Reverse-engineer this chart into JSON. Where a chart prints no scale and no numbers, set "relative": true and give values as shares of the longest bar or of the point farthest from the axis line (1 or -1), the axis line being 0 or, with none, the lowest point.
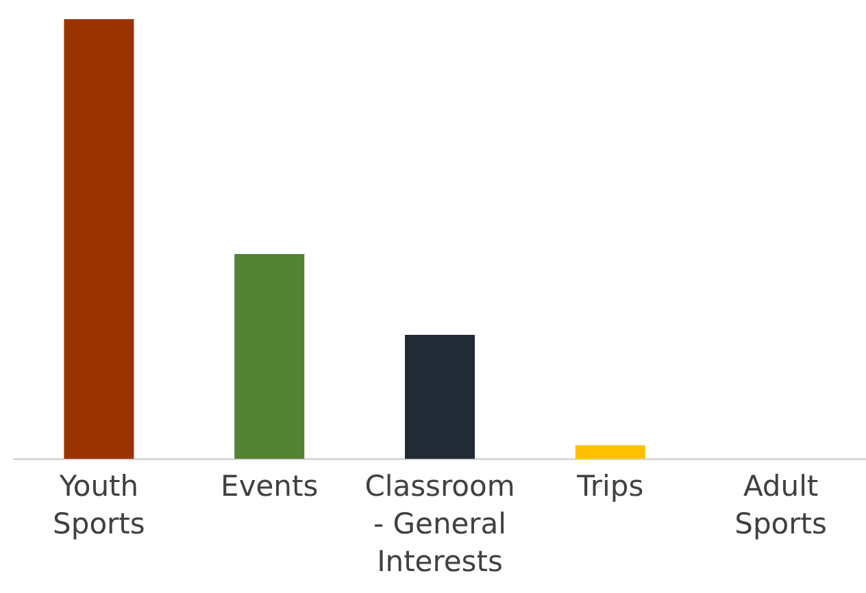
{
  "chart_data": {
    "type": "bar",
    "relative": true,
    "categories": [
      "Youth Sports",
      "Events",
      "Classroom - General Interests",
      "Trips",
      "Adult Sports"
    ],
    "values": [
      1,
      0.466,
      0.282,
      0.031,
      0
    ],
    "colors": [
      "#993300",
      "#548235",
      "#222a35",
      "#ffc000",
      "#4472c4"
    ],
    "grid": false,
    "legend": false
  }
}
